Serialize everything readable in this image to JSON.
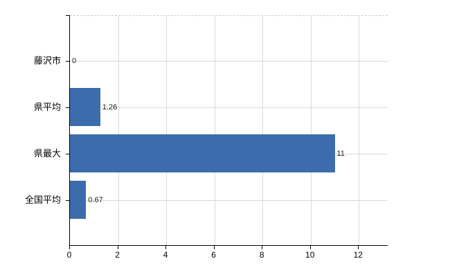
{
  "chart_data": {
    "type": "bar",
    "orientation": "horizontal",
    "title": "",
    "xlabel": "",
    "ylabel": "",
    "categories": [
      "藤沢市",
      "県平均",
      "県最大",
      "全国平均"
    ],
    "values": [
      0,
      1.26,
      11,
      0.67
    ],
    "value_labels": [
      "0",
      "1.26",
      "11",
      "0.67"
    ],
    "x_ticks": [
      0,
      2,
      4,
      6,
      8,
      10,
      12
    ],
    "xlim": [
      0,
      13.2
    ],
    "grid": true,
    "legend": false,
    "bar_color": "#3c6cab",
    "gridline_color": "#d9d9d9",
    "axis_color": "#000000",
    "label_color": "#000000",
    "value_label_color": "#1a1a1a",
    "background_color": "#ffffff"
  }
}
